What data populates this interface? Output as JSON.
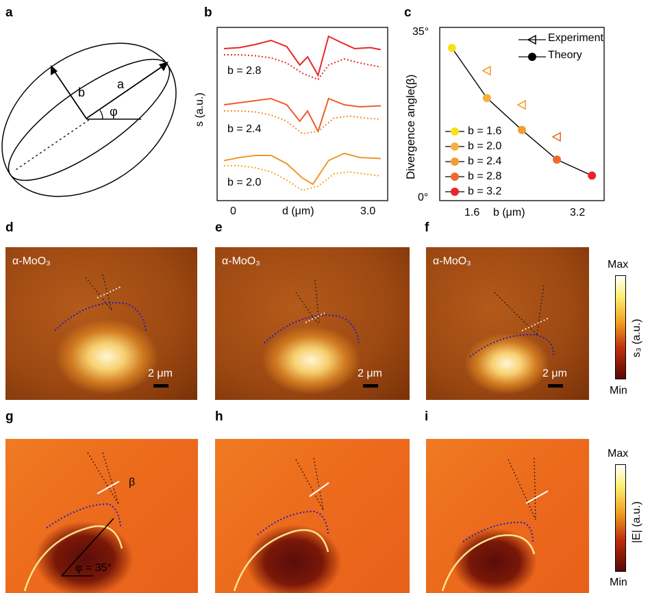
{
  "figure": {
    "panel_labels": [
      "a",
      "b",
      "c",
      "d",
      "e",
      "f",
      "g",
      "h",
      "i"
    ],
    "panel_a": {
      "labels": {
        "major_axis": "a",
        "minor_axis": "b",
        "angle": "φ"
      }
    },
    "panel_b": {
      "ylabel": "s (a.u.)",
      "xlabel": "d (μm)",
      "xtick_left": "0",
      "xtick_right": "3.0",
      "curve_labels": [
        "b = 2.8",
        "b = 2.4",
        "b = 2.0"
      ]
    },
    "panel_c": {
      "ylabel": "Divergence angle(β)",
      "xlabel": "b (μm)",
      "ytick_top": "35°",
      "ytick_bottom": "0°",
      "xtick_left": "1.6",
      "xtick_right": "3.2",
      "legend_markers": [
        "Experiment",
        "Theory"
      ],
      "legend_b": [
        "b = 1.6",
        "b = 2.0",
        "b = 2.4",
        "b = 2.8",
        "b = 3.2"
      ]
    },
    "image_row1": {
      "material_label": "α-MoO₃",
      "scale_label": "2 μm",
      "colorbar": {
        "max": "Max",
        "min": "Min",
        "label": "s₃ (a.u.)"
      }
    },
    "image_row2": {
      "beta_label": "β",
      "phi_label": "φ = 35°",
      "colorbar": {
        "max": "Max",
        "min": "Min",
        "label": "|E| (a.u.)"
      }
    }
  },
  "chart_data": [
    {
      "type": "line",
      "panel": "b",
      "title": "",
      "xlabel": "d (μm)",
      "ylabel": "s (a.u.)",
      "xlim": [
        0,
        3.0
      ],
      "series": [
        {
          "name": "b = 2.8 (experiment, solid)",
          "color": "#e8262a",
          "x": [
            0,
            0.3,
            0.6,
            0.9,
            1.2,
            1.45,
            1.6,
            1.8,
            2.0,
            2.2,
            2.5,
            2.8,
            3.0
          ],
          "y": [
            0.96,
            0.97,
            1.0,
            1.04,
            0.98,
            0.8,
            0.88,
            0.7,
            1.08,
            1.03,
            0.96,
            0.97,
            0.95
          ]
        },
        {
          "name": "b = 2.8 (theory, dotted)",
          "color": "#e8262a",
          "x": [
            0,
            0.3,
            0.6,
            0.9,
            1.2,
            1.5,
            1.8,
            2.0,
            2.3,
            2.6,
            3.0
          ],
          "y": [
            0.9,
            0.9,
            0.89,
            0.87,
            0.82,
            0.72,
            0.66,
            0.8,
            0.86,
            0.82,
            0.78
          ]
        },
        {
          "name": "b = 2.4 (experiment, solid)",
          "color": "#ef5b2a",
          "x": [
            0,
            0.3,
            0.6,
            0.9,
            1.2,
            1.45,
            1.6,
            1.8,
            2.0,
            2.3,
            2.6,
            3.0
          ],
          "y": [
            0.96,
            0.98,
            1.0,
            1.02,
            0.96,
            0.8,
            0.9,
            0.7,
            1.02,
            0.96,
            0.94,
            0.95
          ]
        },
        {
          "name": "b = 2.4 (theory, dotted)",
          "color": "#f08c28",
          "x": [
            0,
            0.3,
            0.6,
            0.9,
            1.2,
            1.5,
            1.8,
            2.1,
            2.4,
            2.7,
            3.0
          ],
          "y": [
            0.9,
            0.9,
            0.89,
            0.86,
            0.8,
            0.68,
            0.7,
            0.83,
            0.85,
            0.83,
            0.82
          ]
        },
        {
          "name": "b = 2.0 (experiment, solid)",
          "color": "#f0962a",
          "x": [
            0,
            0.3,
            0.6,
            0.9,
            1.2,
            1.5,
            1.7,
            2.0,
            2.3,
            2.6,
            3.0
          ],
          "y": [
            0.95,
            0.98,
            1.0,
            1.0,
            0.92,
            0.78,
            0.72,
            0.95,
            1.02,
            0.98,
            0.97
          ]
        },
        {
          "name": "b = 2.0 (theory, dotted)",
          "color": "#f5a623",
          "x": [
            0,
            0.3,
            0.6,
            0.9,
            1.2,
            1.5,
            1.8,
            2.1,
            2.4,
            2.7,
            3.0
          ],
          "y": [
            0.9,
            0.9,
            0.88,
            0.84,
            0.76,
            0.66,
            0.7,
            0.82,
            0.84,
            0.82,
            0.8
          ]
        }
      ]
    },
    {
      "type": "scatter",
      "panel": "c",
      "title": "",
      "xlabel": "b (μm)",
      "ylabel": "Divergence angle(β)",
      "xlim": [
        1.5,
        3.3
      ],
      "ylim": [
        0,
        35
      ],
      "xticks": [
        1.6,
        3.2
      ],
      "yticks": [
        "0°",
        "35°"
      ],
      "legend": "top-right",
      "series": [
        {
          "name": "Theory",
          "marker": "filled-circle",
          "line": true,
          "x": [
            1.6,
            2.0,
            2.4,
            2.8,
            3.2
          ],
          "y": [
            32.0,
            21.0,
            14.0,
            7.5,
            4.0
          ],
          "colors": [
            "#f7e21a",
            "#f5b041",
            "#f39c33",
            "#ee6a2c",
            "#e8262a"
          ]
        },
        {
          "name": "Experiment",
          "marker": "left-triangle-open",
          "line": false,
          "x": [
            2.0,
            2.4,
            2.8
          ],
          "y": [
            27.0,
            19.5,
            12.5
          ],
          "colors": [
            "#f39c33",
            "#f39c33",
            "#ee6a2c"
          ]
        }
      ]
    }
  ]
}
